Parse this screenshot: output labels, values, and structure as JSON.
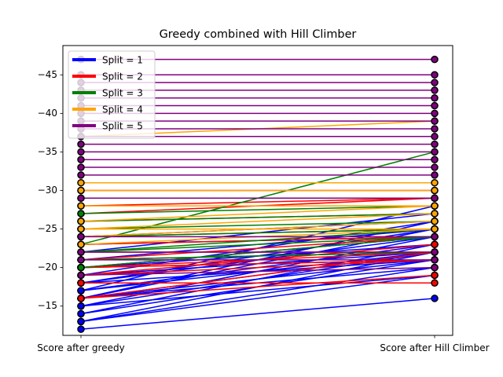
{
  "chart_data": {
    "type": "line",
    "title": "Greedy combined with Hill Climber",
    "xlabel": "",
    "ylabel": "",
    "categories": [
      "Score after greedy",
      "Score after Hill Climber"
    ],
    "y_inverted": true,
    "ylim": [
      -11.2,
      -48.8
    ],
    "yticks": [
      -15,
      -20,
      -25,
      -30,
      -35,
      -40,
      -45
    ],
    "legend_position": "upper left",
    "marker_color": "#000000",
    "series": [
      {
        "name": "Split = 1",
        "color": "#0000ff",
        "lines": [
          [
            -12,
            -16
          ],
          [
            -13,
            -19
          ],
          [
            -13,
            -20
          ],
          [
            -13,
            -22
          ],
          [
            -14,
            -21
          ],
          [
            -14,
            -23
          ],
          [
            -15,
            -19
          ],
          [
            -15,
            -22
          ],
          [
            -15,
            -24
          ],
          [
            -16,
            -20
          ],
          [
            -16,
            -21
          ],
          [
            -16,
            -22
          ],
          [
            -16,
            -25
          ],
          [
            -16,
            -26
          ],
          [
            -17,
            -22
          ],
          [
            -17,
            -23
          ],
          [
            -17,
            -28
          ],
          [
            -18,
            -21
          ],
          [
            -18,
            -24
          ],
          [
            -18,
            -25
          ],
          [
            -19,
            -22
          ],
          [
            -19,
            -26
          ],
          [
            -20,
            -21
          ],
          [
            -20,
            -23
          ],
          [
            -20,
            -24
          ],
          [
            -21,
            -22
          ],
          [
            -21,
            -25
          ],
          [
            -22,
            -27
          ],
          [
            -23,
            -24
          ],
          [
            -24,
            -26
          ]
        ]
      },
      {
        "name": "Split = 2",
        "color": "#ff0000",
        "lines": [
          [
            -16,
            -19
          ],
          [
            -16,
            -22
          ],
          [
            -18,
            -18
          ],
          [
            -19,
            -21
          ],
          [
            -19,
            -23
          ],
          [
            -20,
            -21
          ],
          [
            -20,
            -22
          ],
          [
            -21,
            -24
          ],
          [
            -22,
            -22
          ],
          [
            -23,
            -24
          ],
          [
            -24,
            -25
          ],
          [
            -26,
            -27
          ],
          [
            -27,
            -29
          ],
          [
            -28,
            -29
          ],
          [
            -30,
            -30
          ]
        ]
      },
      {
        "name": "Split = 3",
        "color": "#008000",
        "lines": [
          [
            -20,
            -24
          ],
          [
            -21,
            -22
          ],
          [
            -22,
            -24
          ],
          [
            -22,
            -25
          ],
          [
            -23,
            -35
          ],
          [
            -24,
            -25
          ],
          [
            -25,
            -26
          ],
          [
            -26,
            -27
          ],
          [
            -27,
            -28
          ],
          [
            -29,
            -29
          ]
        ]
      },
      {
        "name": "Split = 4",
        "color": "#ffa500",
        "lines": [
          [
            -23,
            -25
          ],
          [
            -24,
            -26
          ],
          [
            -25,
            -25
          ],
          [
            -25,
            -27
          ],
          [
            -26,
            -28
          ],
          [
            -28,
            -28
          ],
          [
            -30,
            -30
          ],
          [
            -31,
            -31
          ],
          [
            -37,
            -39
          ]
        ]
      },
      {
        "name": "Split = 5",
        "color": "#800080",
        "lines": [
          [
            -19,
            -20
          ],
          [
            -21,
            -21
          ],
          [
            -22,
            -22
          ],
          [
            -24,
            -24
          ],
          [
            -29,
            -29
          ],
          [
            -32,
            -32
          ],
          [
            -33,
            -33
          ],
          [
            -34,
            -34
          ],
          [
            -35,
            -35
          ],
          [
            -36,
            -36
          ],
          [
            -37,
            -37
          ],
          [
            -38,
            -38
          ],
          [
            -39,
            -39
          ],
          [
            -40,
            -40
          ],
          [
            -41,
            -41
          ],
          [
            -42,
            -42
          ],
          [
            -43,
            -43
          ],
          [
            -44,
            -44
          ],
          [
            -45,
            -45
          ],
          [
            -47,
            -47
          ]
        ]
      }
    ]
  }
}
